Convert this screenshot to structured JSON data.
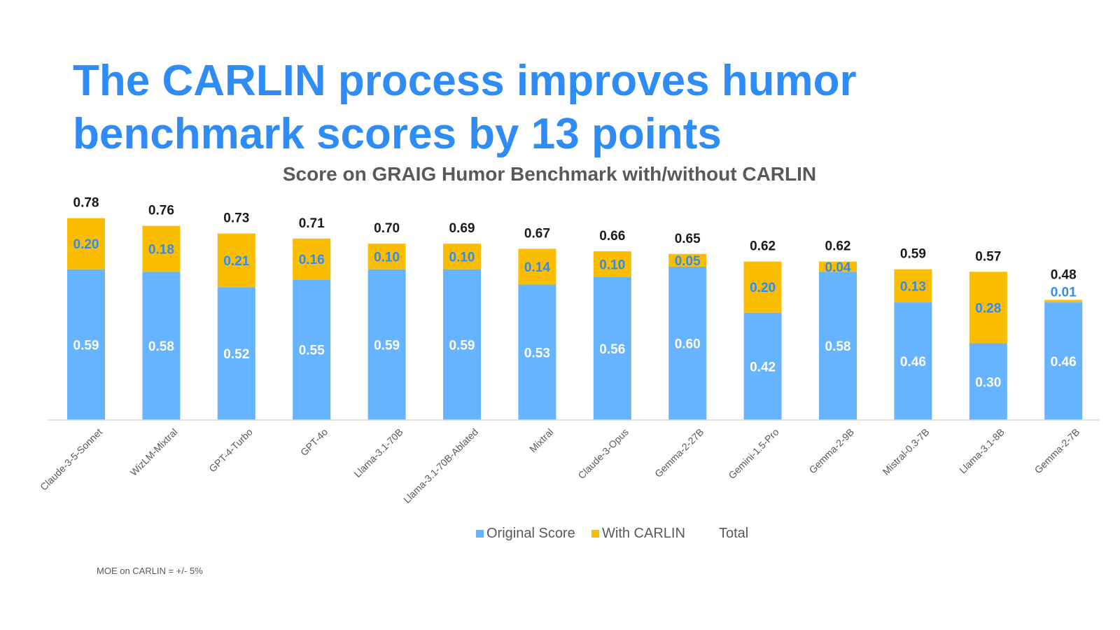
{
  "slide": {
    "title_line1": "The CARLIN process improves humor",
    "title_line2": "benchmark scores by 13 points",
    "footnote": "MOE on CARLIN = +/- 5%"
  },
  "colors": {
    "title": "#2f8cf5",
    "original": "#66b3ff",
    "carlin": "#fabd00",
    "carlin_label": "#2f8cf5",
    "total_label": "#1a1a1a",
    "axis": "#d9d9d9"
  },
  "chart_data": {
    "type": "bar",
    "stacked": true,
    "title": "Score on GRAIG Humor Benchmark with/without CARLIN",
    "categories": [
      "Claude-3-5-Sonnet",
      "WizLM-Mixtral",
      "GPT-4-Turbo",
      "GPT-4o",
      "Llama-3.1-70B",
      "Llama-3.1-70B-Ablated",
      "Mixtral",
      "Claude-3-Opus",
      "Gemma-2-27B",
      "Gemini-1.5-Pro",
      "Gemma-2-9B",
      "Mistral-0.3-7B",
      "Llama-3.1-8B",
      "Gemma-2-7B"
    ],
    "series": [
      {
        "name": "Original Score",
        "values": [
          0.59,
          0.58,
          0.52,
          0.55,
          0.59,
          0.59,
          0.53,
          0.56,
          0.6,
          0.42,
          0.58,
          0.46,
          0.3,
          0.46
        ],
        "labels": [
          "0.59",
          "0.58",
          "0.52",
          "0.55",
          "0.59",
          "0.59",
          "0.53",
          "0.56",
          "0.60",
          "0.42",
          "0.58",
          "0.46",
          "0.30",
          "0.46"
        ]
      },
      {
        "name": "With CARLIN",
        "values": [
          0.2,
          0.18,
          0.21,
          0.16,
          0.1,
          0.1,
          0.14,
          0.1,
          0.05,
          0.2,
          0.04,
          0.13,
          0.28,
          0.01
        ],
        "labels": [
          "0.20",
          "0.18",
          "0.21",
          "0.16",
          "0.10",
          "0.10",
          "0.14",
          "0.10",
          "0.05",
          "0.20",
          "0.04",
          "0.13",
          "0.28",
          "0.01"
        ]
      },
      {
        "name": "Total",
        "values": [
          0.78,
          0.76,
          0.73,
          0.71,
          0.7,
          0.69,
          0.67,
          0.66,
          0.65,
          0.62,
          0.62,
          0.59,
          0.57,
          0.48
        ],
        "labels": [
          "0.78",
          "0.76",
          "0.73",
          "0.71",
          "0.70",
          "0.69",
          "0.67",
          "0.66",
          "0.65",
          "0.62",
          "0.62",
          "0.59",
          "0.57",
          "0.48"
        ]
      }
    ],
    "legend_position": "bottom",
    "grid": false
  }
}
